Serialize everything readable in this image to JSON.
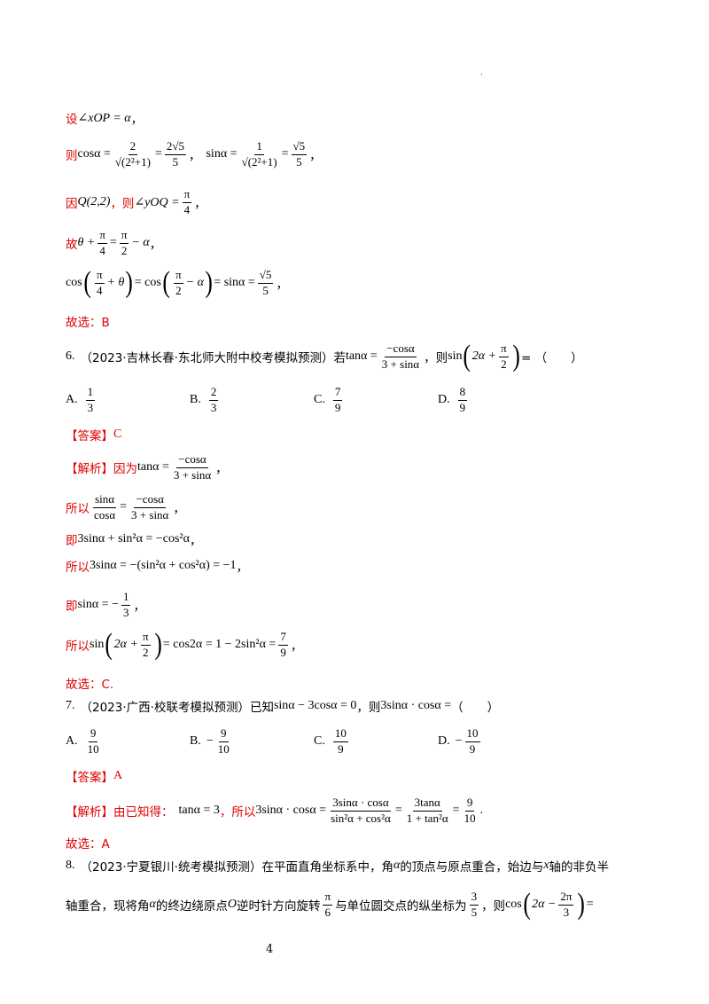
{
  "page_mark": "’",
  "l1": {
    "prefix": "设",
    "expr": "∠xOP = α",
    "end": "，"
  },
  "l2": {
    "prefix": "则",
    "cos_label": "cosα =",
    "f1_num": "2",
    "f1_den": "√(2²+1)",
    "eq1": "=",
    "f2_num": "2√5",
    "f2_den": "5",
    "sep": "，",
    "sin_label": "sinα =",
    "f3_num": "1",
    "f3_den": "√(2²+1)",
    "eq2": "=",
    "f4_num": "√5",
    "f4_den": "5",
    "end": "，"
  },
  "l3": {
    "prefix": "因",
    "point": "Q(2,2)",
    "mid": "，则",
    "angle": "∠yOQ =",
    "f_num": "π",
    "f_den": "4",
    "end": "，"
  },
  "l4": {
    "prefix": "故",
    "a": "θ +",
    "f1_num": "π",
    "f1_den": "4",
    "eq": "=",
    "f2_num": "π",
    "f2_den": "2",
    "b": "− α",
    "end": "，"
  },
  "l5": {
    "a": "cos",
    "f1_num": "π",
    "f1_den": "4",
    "a2": "+ θ",
    "eq1": "= cos",
    "f2_num": "π",
    "f2_den": "2",
    "b2": "− α",
    "eq2": "= sinα =",
    "f3_num": "√5",
    "f3_den": "5",
    "end": "，"
  },
  "l6": {
    "text": "故选：B"
  },
  "q6": {
    "num": "6.",
    "src": "（2023·吉林长春·东北师大附中校考模拟预测）若",
    "tan": "tanα =",
    "f_num": "−cosα",
    "f_den": "3 + sinα",
    "mid": "，则",
    "sin": "sin",
    "inner": "2α +",
    "i_num": "π",
    "i_den": "2",
    "tail": "= （　　）"
  },
  "q6opts": [
    {
      "label": "A.",
      "num": "1",
      "den": "3"
    },
    {
      "label": "B.",
      "num": "2",
      "den": "3"
    },
    {
      "label": "C.",
      "num": "7",
      "den": "9"
    },
    {
      "label": "D.",
      "num": "8",
      "den": "9"
    }
  ],
  "a6": {
    "tag": "【答案】",
    "val": "C"
  },
  "e6": {
    "tag": "【解析】",
    "p1": "因为",
    "tan": "tanα =",
    "f_num": "−cosα",
    "f_den": "3 + sinα",
    "end": "，",
    "s2": {
      "prefix": "所以",
      "l_num": "sinα",
      "l_den": "cosα",
      "eq": "=",
      "r_num": "−cosα",
      "r_den": "3 + sinα",
      "end": "，"
    },
    "s3": {
      "prefix": "即",
      "expr": "3sinα + sin²α = −cos²α",
      "end": "，"
    },
    "s4": {
      "prefix": "所以",
      "expr": "3sinα = −(sin²α + cos²α) = −1",
      "end": "，"
    },
    "s5": {
      "prefix": "即",
      "expr": "sinα = −",
      "f_num": "1",
      "f_den": "3",
      "end": "，"
    },
    "s6": {
      "prefix": "所以",
      "a": "sin",
      "inner": "2α +",
      "i_num": "π",
      "i_den": "2",
      "b": "= cos2α = 1 − 2sin²α =",
      "f_num": "7",
      "f_den": "9",
      "end": "，"
    },
    "s7": "故选：C."
  },
  "q7": {
    "num": "7.",
    "src": "（2023·广西·校联考模拟预测）已知",
    "expr": "sinα − 3cosα = 0",
    "mid": "，则",
    "ask": "3sinα · cosα =",
    "tail": "（　　）"
  },
  "q7opts": [
    {
      "label": "A.",
      "sign": "",
      "num": "9",
      "den": "10"
    },
    {
      "label": "B.",
      "sign": "−",
      "num": "9",
      "den": "10"
    },
    {
      "label": "C.",
      "sign": "",
      "num": "10",
      "den": "9"
    },
    {
      "label": "D.",
      "sign": "−",
      "num": "10",
      "den": "9"
    }
  ],
  "a7": {
    "tag": "【答案】",
    "val": "A"
  },
  "e7": {
    "tag": "【解析】",
    "p1": "由已知得：",
    "given": "tanα = 3",
    "p2": "，所以",
    "a": "3sinα · cosα =",
    "f1_num": "3sinα · cosα",
    "f1_den": "sin²α + cos²α",
    "eq1": "=",
    "f2_num": "3tanα",
    "f2_den": "1 + tan²α",
    "eq2": "=",
    "f3_num": "9",
    "f3_den": "10",
    "end": "."
  },
  "s7": "故选：A",
  "q8": {
    "num": "8.",
    "src": "（2023·宁夏银川·统考模拟预测）在平面直角坐标系中，角",
    "alpha": "α",
    "t1": "的顶点与原点重合，始边与",
    "x": "x",
    "t2": "轴的非负半",
    "l2a": "轴重合，现将角",
    "alpha2": "α",
    "l2b": "的终边绕原点",
    "O": "O",
    "l2c": "逆时针方向旋转",
    "r_num": "π",
    "r_den": "6",
    "l2d": "与单位圆交点的纵坐标为",
    "y_num": "3",
    "y_den": "5",
    "l2e": "，则",
    "cos": "cos",
    "inner": "2α −",
    "c_num": "2π",
    "c_den": "3",
    "eq": "="
  },
  "page_number": "4"
}
